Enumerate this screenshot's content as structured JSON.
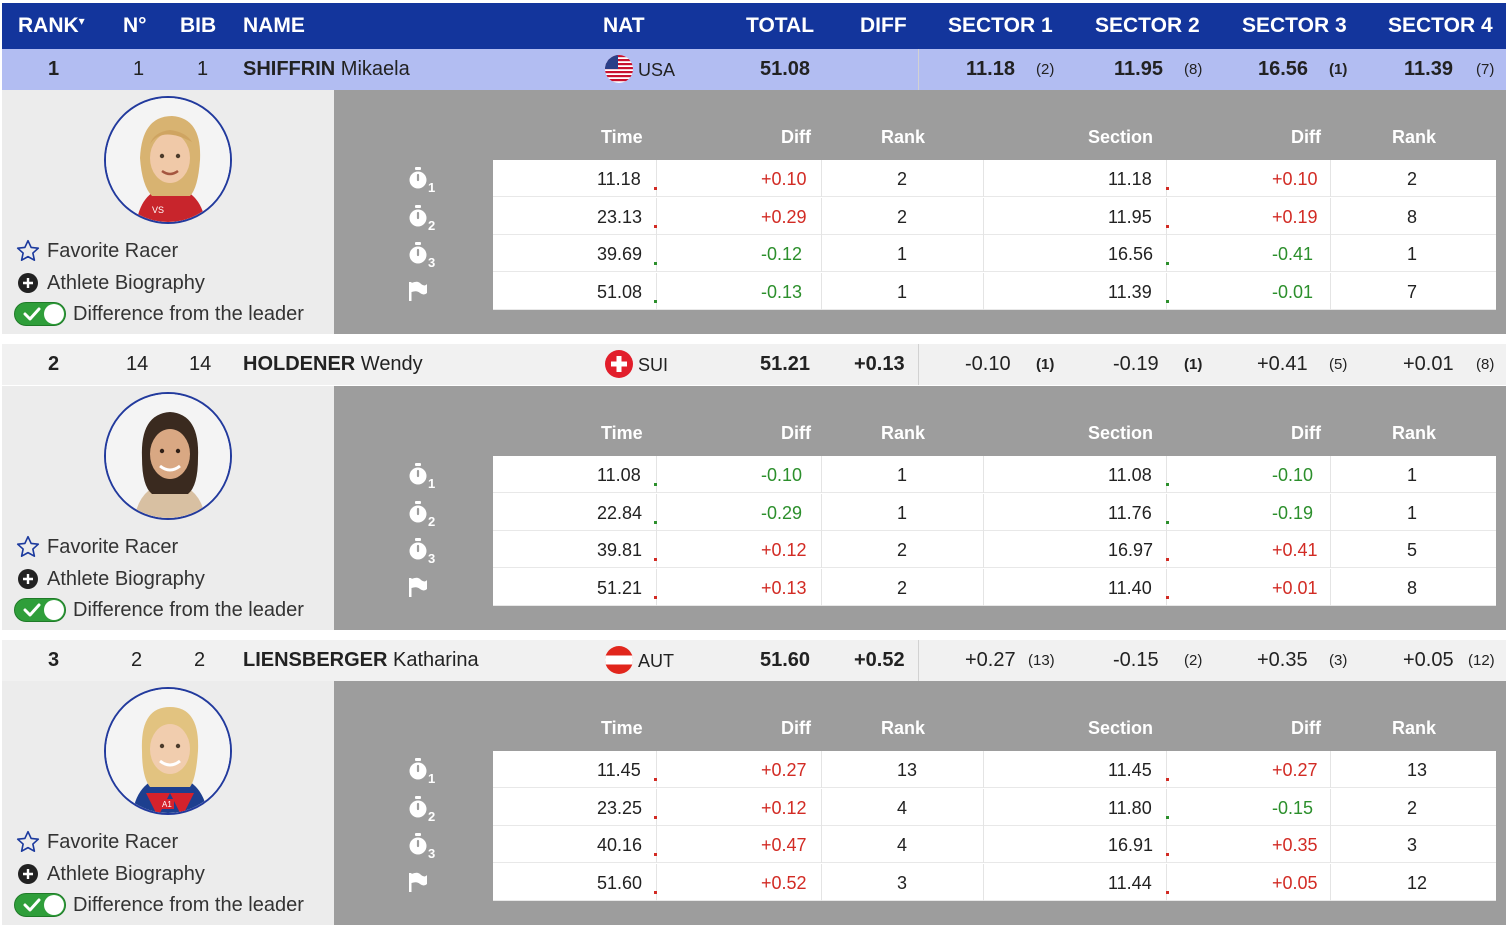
{
  "header": {
    "rank": "RANK",
    "rank_sort_glyph": "▾",
    "no": "N°",
    "bib": "BIB",
    "name": "NAME",
    "nat": "NAT",
    "total": "TOTAL",
    "diff": "DIFF",
    "sector1": "SECTOR 1",
    "sector2": "SECTOR 2",
    "sector3": "SECTOR 3",
    "sector4": "SECTOR 4"
  },
  "table_headers": {
    "time": "Time",
    "diff": "Diff",
    "rank": "Rank",
    "section": "Section",
    "diff2": "Diff",
    "rank2": "Rank"
  },
  "actions": {
    "favorite": "Favorite Racer",
    "biography": "Athlete Biography",
    "diff_leader": "Difference from the leader"
  },
  "colors": {
    "header_bg": "#13359c",
    "leader_row_bg": "#b2bdf2",
    "positive_diff": "#d22b24",
    "negative_diff": "#2c8f2c",
    "toggle_on": "#2f9e3a"
  },
  "racers": [
    {
      "rank": "1",
      "no": "1",
      "bib": "1",
      "last_name": "SHIFFRIN",
      "first_name": "Mikaela",
      "nat": "USA",
      "flag_icon": "usa-flag-icon",
      "total": "51.08",
      "diff": "",
      "sectors": [
        {
          "value": "11.18",
          "rank": "(2)"
        },
        {
          "value": "11.95",
          "rank": "(8)"
        },
        {
          "value": "16.56",
          "rank": "(1)"
        },
        {
          "value": "11.39",
          "rank": "(7)"
        }
      ],
      "splits": [
        {
          "time": "11.18",
          "diff": "+0.10",
          "rank": "2",
          "section": "11.18",
          "sdiff": "+0.10",
          "srank": "2"
        },
        {
          "time": "23.13",
          "diff": "+0.29",
          "rank": "2",
          "section": "11.95",
          "sdiff": "+0.19",
          "srank": "8"
        },
        {
          "time": "39.69",
          "diff": "-0.12",
          "rank": "1",
          "section": "16.56",
          "sdiff": "-0.41",
          "srank": "1"
        },
        {
          "time": "51.08",
          "diff": "-0.13",
          "rank": "1",
          "section": "11.39",
          "sdiff": "-0.01",
          "srank": "7"
        }
      ]
    },
    {
      "rank": "2",
      "no": "14",
      "bib": "14",
      "last_name": "HOLDENER",
      "first_name": "Wendy",
      "nat": "SUI",
      "flag_icon": "switzerland-flag-icon",
      "total": "51.21",
      "diff": "+0.13",
      "sectors": [
        {
          "value": "-0.10",
          "rank": "(1)"
        },
        {
          "value": "-0.19",
          "rank": "(1)"
        },
        {
          "value": "+0.41",
          "rank": "(5)"
        },
        {
          "value": "+0.01",
          "rank": "(8)"
        }
      ],
      "splits": [
        {
          "time": "11.08",
          "diff": "-0.10",
          "rank": "1",
          "section": "11.08",
          "sdiff": "-0.10",
          "srank": "1"
        },
        {
          "time": "22.84",
          "diff": "-0.29",
          "rank": "1",
          "section": "11.76",
          "sdiff": "-0.19",
          "srank": "1"
        },
        {
          "time": "39.81",
          "diff": "+0.12",
          "rank": "2",
          "section": "16.97",
          "sdiff": "+0.41",
          "srank": "5"
        },
        {
          "time": "51.21",
          "diff": "+0.13",
          "rank": "2",
          "section": "11.40",
          "sdiff": "+0.01",
          "srank": "8"
        }
      ]
    },
    {
      "rank": "3",
      "no": "2",
      "bib": "2",
      "last_name": "LIENSBERGER",
      "first_name": "Katharina",
      "nat": "AUT",
      "flag_icon": "austria-flag-icon",
      "total": "51.60",
      "diff": "+0.52",
      "sectors": [
        {
          "value": "+0.27",
          "rank": "(13)"
        },
        {
          "value": "-0.15",
          "rank": "(2)"
        },
        {
          "value": "+0.35",
          "rank": "(3)"
        },
        {
          "value": "+0.05",
          "rank": "(12)"
        }
      ],
      "splits": [
        {
          "time": "11.45",
          "diff": "+0.27",
          "rank": "13",
          "section": "11.45",
          "sdiff": "+0.27",
          "srank": "13"
        },
        {
          "time": "23.25",
          "diff": "+0.12",
          "rank": "4",
          "section": "11.80",
          "sdiff": "-0.15",
          "srank": "2"
        },
        {
          "time": "40.16",
          "diff": "+0.47",
          "rank": "4",
          "section": "16.91",
          "sdiff": "+0.35",
          "srank": "3"
        },
        {
          "time": "51.60",
          "diff": "+0.52",
          "rank": "3",
          "section": "11.44",
          "sdiff": "+0.05",
          "srank": "12"
        }
      ]
    }
  ],
  "split_icons": [
    {
      "icon": "stopwatch-icon",
      "sub": "1"
    },
    {
      "icon": "stopwatch-icon",
      "sub": "2"
    },
    {
      "icon": "stopwatch-icon",
      "sub": "3"
    },
    {
      "icon": "finish-flag-icon",
      "sub": ""
    }
  ]
}
